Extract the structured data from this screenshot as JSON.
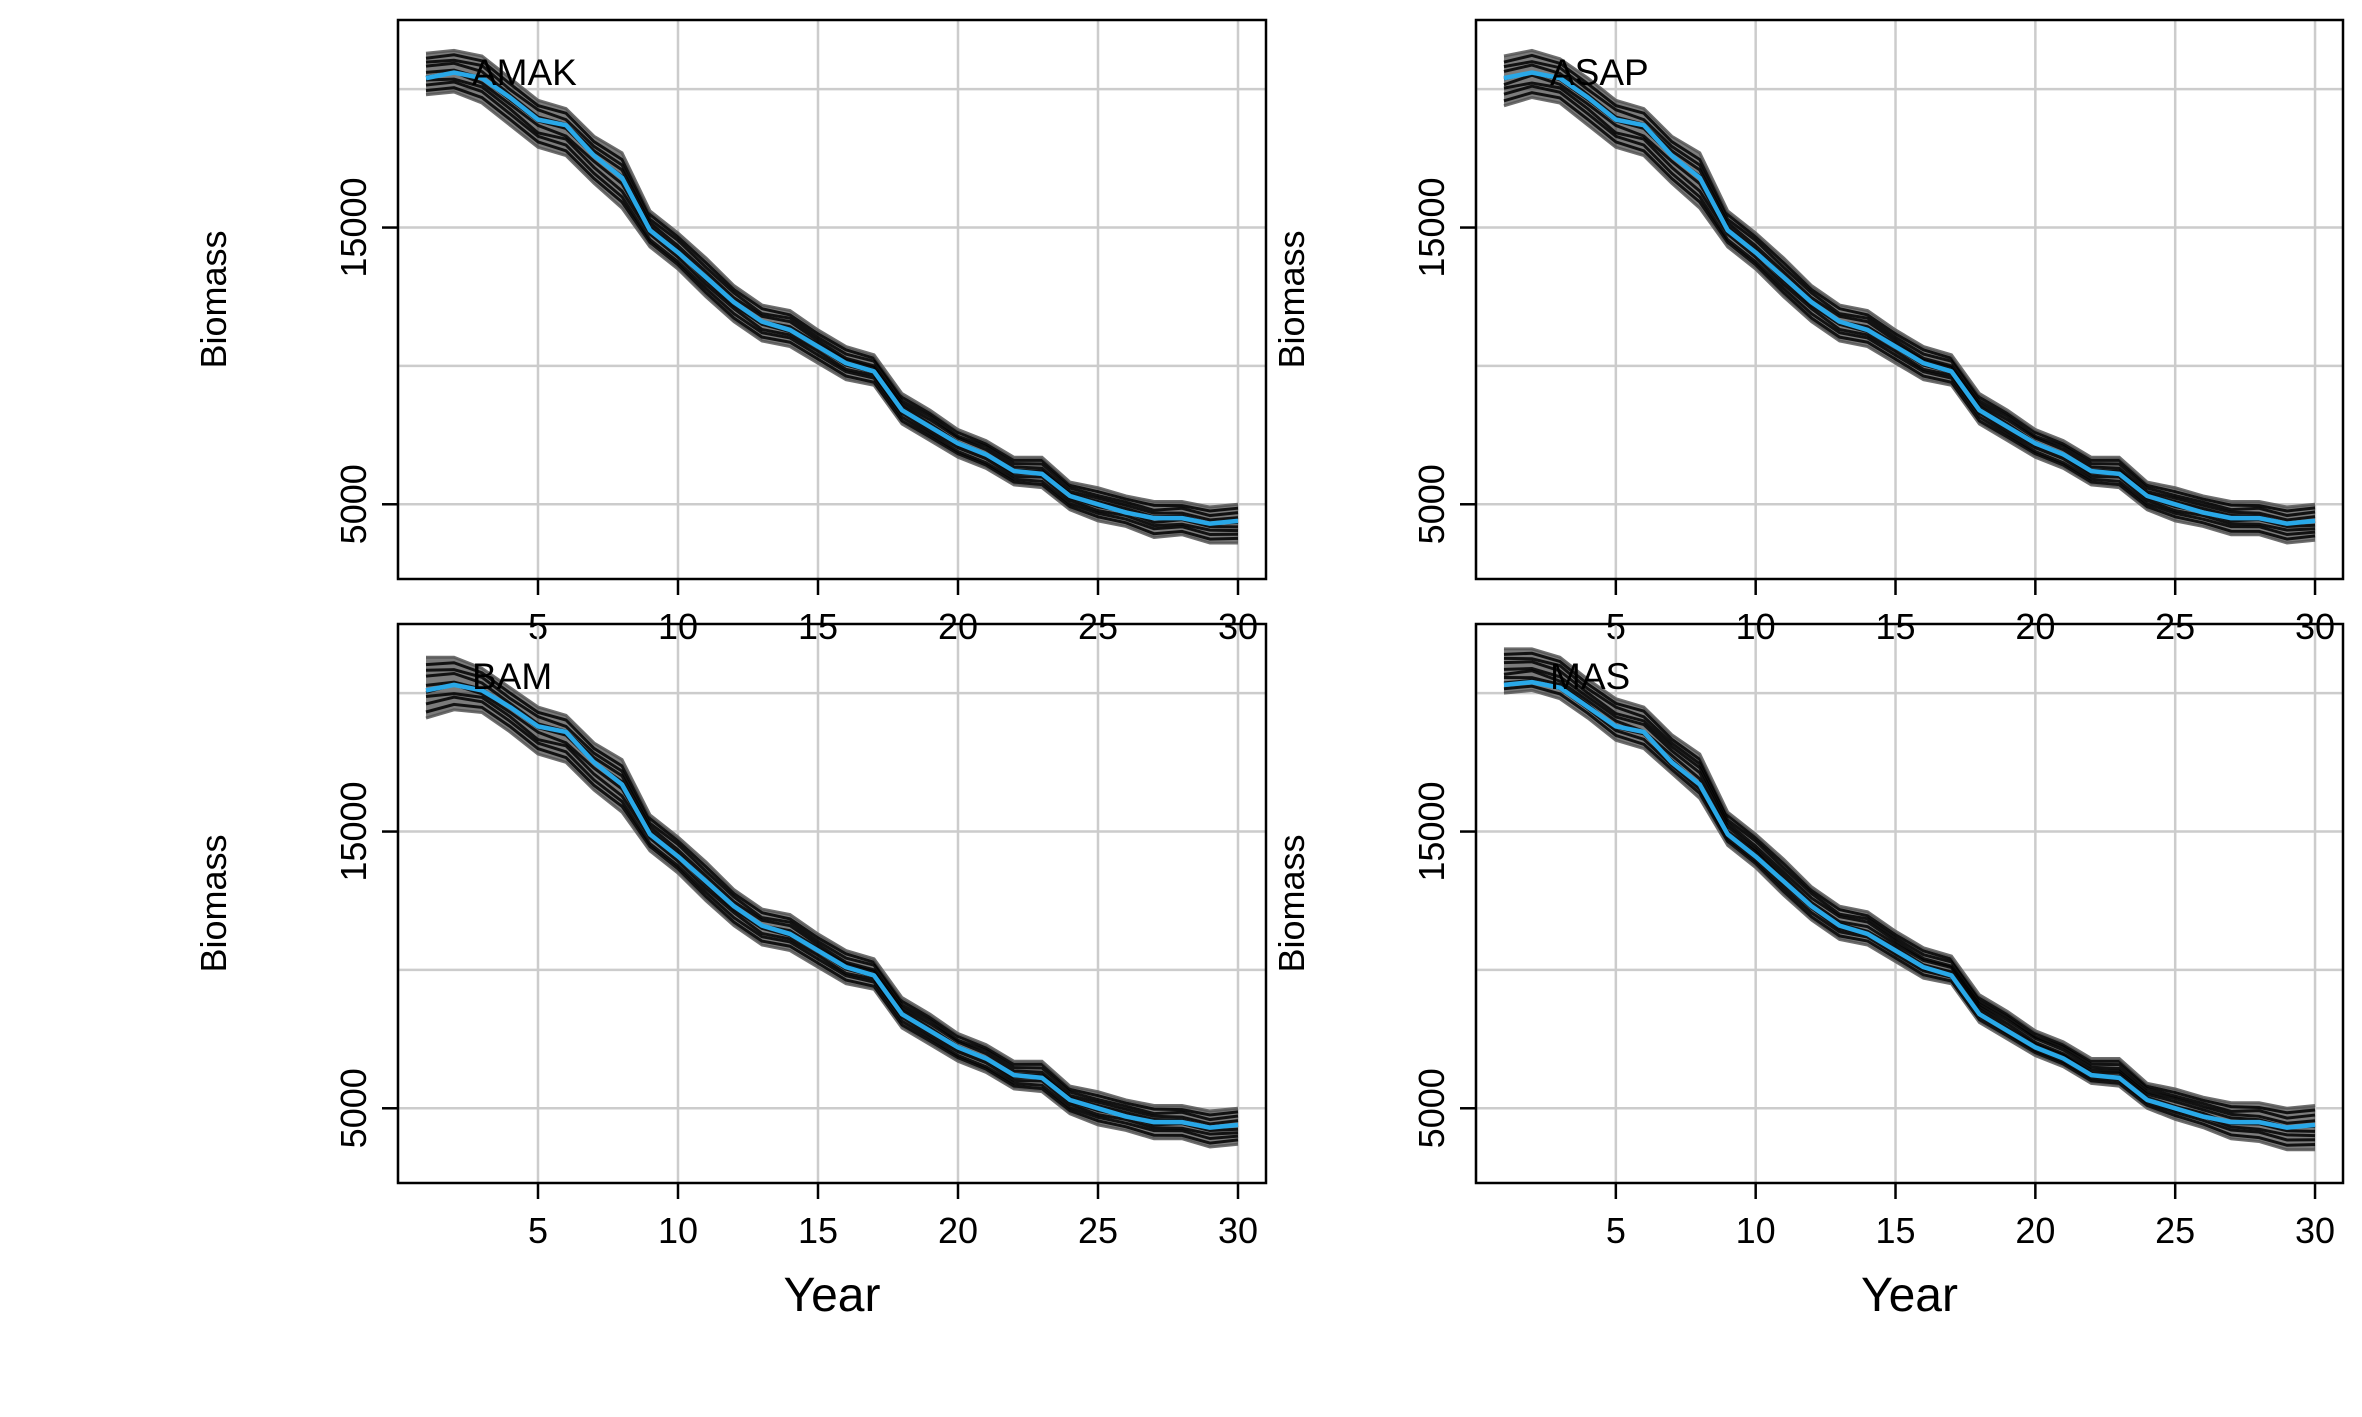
{
  "chart_data": [
    {
      "type": "line",
      "title": "AMAK",
      "xlabel": "",
      "ylabel": "Biomass",
      "xlim": [
        0,
        31
      ],
      "ylim": [
        2300,
        22500
      ],
      "x_ticks": [
        5,
        10,
        15,
        20,
        25,
        30
      ],
      "y_ticks": [
        5000,
        15000
      ],
      "grid": true,
      "x": [
        1,
        2,
        3,
        4,
        5,
        6,
        7,
        8,
        9,
        10,
        11,
        12,
        13,
        14,
        15,
        16,
        17,
        18,
        19,
        20,
        21,
        22,
        23,
        24,
        25,
        26,
        27,
        28,
        29,
        30
      ],
      "series": [
        {
          "color": "#29a8e8",
          "values": [
            20400,
            20600,
            20400,
            19700,
            18900,
            18700,
            17600,
            16800,
            14900,
            14100,
            13200,
            12300,
            11600,
            11300,
            10700,
            10100,
            9800,
            8400,
            7800,
            7200,
            6800,
            6200,
            6100,
            5300,
            5000,
            4700,
            4500,
            4500,
            4300,
            4400
          ],
          "band_low": [
            19800,
            19900,
            19500,
            18700,
            17900,
            17600,
            16600,
            15700,
            14300,
            13500,
            12500,
            11600,
            10900,
            10700,
            10100,
            9500,
            9300,
            7900,
            7300,
            6700,
            6300,
            5700,
            5600,
            4800,
            4400,
            4200,
            3800,
            3900,
            3600,
            3600
          ],
          "band_high": [
            21300,
            21400,
            21200,
            20400,
            19600,
            19300,
            18300,
            17700,
            15600,
            14800,
            13900,
            12900,
            12200,
            12000,
            11300,
            10700,
            10400,
            9000,
            8400,
            7700,
            7300,
            6700,
            6700,
            5800,
            5600,
            5300,
            5100,
            5100,
            4900,
            5000
          ]
        }
      ]
    },
    {
      "type": "line",
      "title": "ASAP",
      "xlabel": "",
      "ylabel": "Biomass",
      "xlim": [
        0,
        31
      ],
      "ylim": [
        2300,
        22500
      ],
      "x_ticks": [
        5,
        10,
        15,
        20,
        25,
        30
      ],
      "y_ticks": [
        5000,
        15000
      ],
      "grid": true,
      "x": [
        1,
        2,
        3,
        4,
        5,
        6,
        7,
        8,
        9,
        10,
        11,
        12,
        13,
        14,
        15,
        16,
        17,
        18,
        19,
        20,
        21,
        22,
        23,
        24,
        25,
        26,
        27,
        28,
        29,
        30
      ],
      "series": [
        {
          "color": "#29a8e8",
          "values": [
            20400,
            20600,
            20400,
            19700,
            18900,
            18700,
            17600,
            16800,
            14900,
            14100,
            13200,
            12300,
            11600,
            11300,
            10700,
            10100,
            9800,
            8400,
            7800,
            7200,
            6800,
            6200,
            6100,
            5300,
            5000,
            4700,
            4500,
            4500,
            4300,
            4400
          ],
          "band_low": [
            19400,
            19700,
            19500,
            18700,
            17900,
            17600,
            16600,
            15700,
            14300,
            13500,
            12500,
            11600,
            10900,
            10700,
            10100,
            9500,
            9300,
            7900,
            7300,
            6700,
            6300,
            5700,
            5600,
            4800,
            4400,
            4200,
            3900,
            3900,
            3600,
            3700
          ],
          "band_high": [
            21200,
            21400,
            21100,
            20400,
            19600,
            19300,
            18300,
            17700,
            15600,
            14800,
            13900,
            12900,
            12200,
            12000,
            11300,
            10700,
            10400,
            9000,
            8400,
            7700,
            7300,
            6700,
            6700,
            5800,
            5600,
            5300,
            5100,
            5100,
            4900,
            5000
          ]
        }
      ]
    },
    {
      "type": "line",
      "title": "BAM",
      "xlabel": "Year",
      "ylabel": "Biomass",
      "xlim": [
        0,
        31
      ],
      "ylim": [
        2300,
        22500
      ],
      "x_ticks": [
        5,
        10,
        15,
        20,
        25,
        30
      ],
      "y_ticks": [
        5000,
        15000
      ],
      "grid": true,
      "x": [
        1,
        2,
        3,
        4,
        5,
        6,
        7,
        8,
        9,
        10,
        11,
        12,
        13,
        14,
        15,
        16,
        17,
        18,
        19,
        20,
        21,
        22,
        23,
        24,
        25,
        26,
        27,
        28,
        29,
        30
      ],
      "series": [
        {
          "color": "#29a8e8",
          "values": [
            20100,
            20300,
            20100,
            19500,
            18800,
            18600,
            17500,
            16700,
            14900,
            14100,
            13200,
            12300,
            11600,
            11300,
            10700,
            10100,
            9800,
            8400,
            7800,
            7200,
            6800,
            6200,
            6100,
            5300,
            5000,
            4700,
            4500,
            4500,
            4300,
            4400
          ],
          "band_low": [
            19100,
            19400,
            19300,
            18600,
            17800,
            17500,
            16500,
            15700,
            14300,
            13500,
            12500,
            11600,
            10900,
            10700,
            10100,
            9500,
            9300,
            7900,
            7300,
            6700,
            6300,
            5700,
            5600,
            4800,
            4400,
            4200,
            3900,
            3900,
            3600,
            3700
          ],
          "band_high": [
            21300,
            21300,
            20900,
            20200,
            19500,
            19200,
            18200,
            17600,
            15600,
            14800,
            13900,
            12900,
            12200,
            12000,
            11300,
            10700,
            10400,
            9000,
            8400,
            7700,
            7300,
            6700,
            6700,
            5800,
            5600,
            5300,
            5100,
            5100,
            4900,
            5000
          ]
        }
      ]
    },
    {
      "type": "line",
      "title": "MAS",
      "xlabel": "Year",
      "ylabel": "Biomass",
      "xlim": [
        0,
        31
      ],
      "ylim": [
        2300,
        22500
      ],
      "x_ticks": [
        5,
        10,
        15,
        20,
        25,
        30
      ],
      "y_ticks": [
        5000,
        15000
      ],
      "grid": true,
      "x": [
        1,
        2,
        3,
        4,
        5,
        6,
        7,
        8,
        9,
        10,
        11,
        12,
        13,
        14,
        15,
        16,
        17,
        18,
        19,
        20,
        21,
        22,
        23,
        24,
        25,
        26,
        27,
        28,
        29,
        30
      ],
      "series": [
        {
          "color": "#29a8e8",
          "values": [
            20300,
            20400,
            20200,
            19500,
            18800,
            18600,
            17500,
            16700,
            14900,
            14100,
            13200,
            12300,
            11600,
            11300,
            10700,
            10100,
            9800,
            8400,
            7800,
            7200,
            6800,
            6200,
            6100,
            5300,
            5000,
            4700,
            4500,
            4500,
            4300,
            4400
          ],
          "band_low": [
            20000,
            20100,
            19800,
            19100,
            18300,
            18000,
            17100,
            16200,
            14500,
            13700,
            12700,
            11800,
            11100,
            10900,
            10300,
            9700,
            9500,
            8100,
            7500,
            6900,
            6500,
            5900,
            5800,
            5000,
            4600,
            4300,
            3900,
            3800,
            3500,
            3500
          ],
          "band_high": [
            21600,
            21600,
            21300,
            20500,
            19800,
            19500,
            18500,
            17800,
            15700,
            14900,
            14000,
            13000,
            12300,
            12100,
            11400,
            10800,
            10500,
            9100,
            8500,
            7800,
            7400,
            6800,
            6800,
            5900,
            5700,
            5400,
            5200,
            5200,
            5000,
            5100
          ]
        }
      ]
    }
  ]
}
